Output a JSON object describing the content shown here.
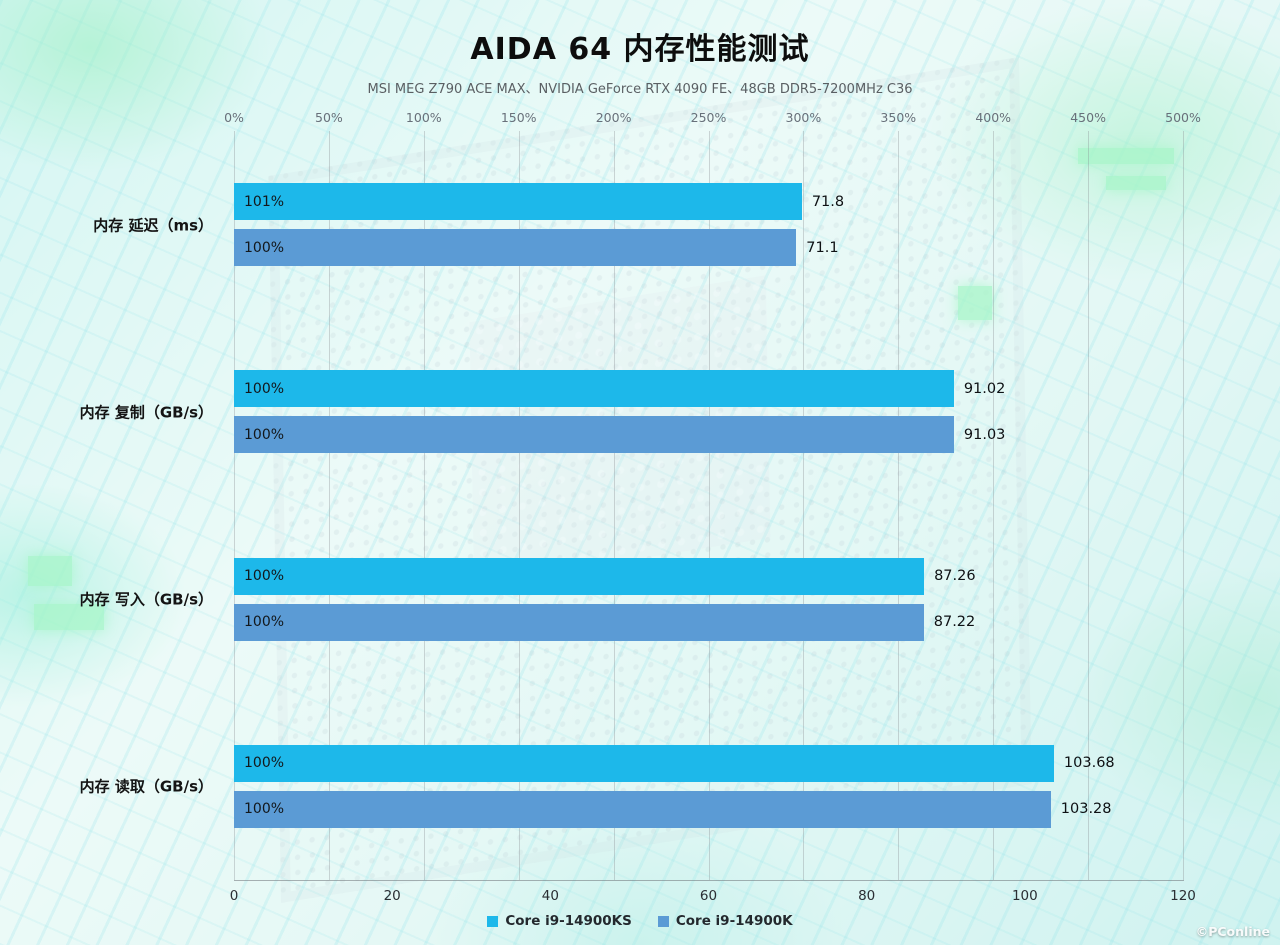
{
  "chart_data": {
    "type": "bar",
    "orientation": "horizontal",
    "title": "AIDA 64 内存性能测试",
    "subtitle": "MSI MEG Z790 ACE MAX、NVIDIA GeForce RTX 4090 FE、48GB DDR5-7200MHz C36",
    "categories": [
      "内存 延迟（ms）",
      "内存 复制（GB/s）",
      "内存 写入（GB/s）",
      "内存 读取（GB/s）"
    ],
    "series": [
      {
        "name": "Core i9-14900KS",
        "color": "#1db8ea",
        "values": [
          71.8,
          91.02,
          87.26,
          103.68
        ],
        "value_labels": [
          "71.8",
          "91.02",
          "87.26",
          "103.68"
        ],
        "percent_labels": [
          "101%",
          "100%",
          "100%",
          "100%"
        ]
      },
      {
        "name": "Core i9-14900K",
        "color": "#5b9bd5",
        "values": [
          71.1,
          91.03,
          87.22,
          103.28
        ],
        "value_labels": [
          "71.1",
          "91.03",
          "87.22",
          "103.28"
        ],
        "percent_labels": [
          "100%",
          "100%",
          "100%",
          "100%"
        ]
      }
    ],
    "value_axis": {
      "min": 0,
      "max": 120,
      "ticks": [
        0,
        20,
        40,
        60,
        80,
        100,
        120
      ]
    },
    "percent_axis": {
      "ticks": [
        "0%",
        "50%",
        "100%",
        "150%",
        "200%",
        "250%",
        "300%",
        "350%",
        "400%",
        "450%",
        "500%"
      ]
    },
    "legend_position": "bottom",
    "grid": true,
    "watermark": "©PConline"
  }
}
